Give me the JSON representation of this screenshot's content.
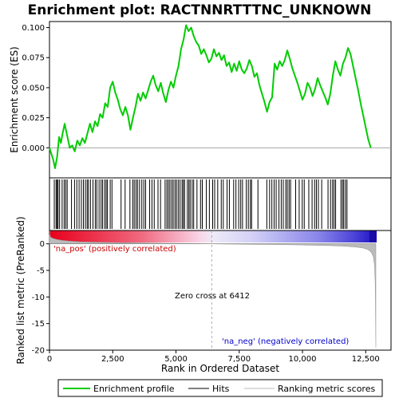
{
  "chart_data": {
    "type": "line",
    "title": "Enrichment plot: RACTNNRTTTNC_UNKNOWN",
    "legend": {
      "placement": "bottom",
      "entries": [
        {
          "label": "Enrichment profile",
          "color": "#00cc00"
        },
        {
          "label": "Hits",
          "color": "#000000"
        },
        {
          "label": "Ranking metric scores",
          "color": "#bbbbbb"
        }
      ]
    },
    "x_axis": {
      "label": "Rank in Ordered Dataset",
      "range": [
        0,
        13500
      ],
      "ticks": [
        0,
        2500,
        5000,
        7500,
        10000,
        12500
      ],
      "tick_labels": [
        "0",
        "2,500",
        "5,000",
        "7,500",
        "10,000",
        "12,500"
      ]
    },
    "es_axis": {
      "label": "Enrichment score (ES)",
      "range": [
        -0.025,
        0.105
      ],
      "ticks": [
        0.0,
        0.025,
        0.05,
        0.075,
        0.1
      ],
      "tick_labels": [
        "0.000",
        "0.025",
        "0.050",
        "0.075",
        "0.100"
      ]
    },
    "rank_axis": {
      "label": "Ranked list metric (PreRanked)",
      "range": [
        -20,
        2.5
      ],
      "ticks": [
        -20,
        -15,
        -10,
        -5,
        0
      ],
      "tick_labels": [
        "-20",
        "-15",
        "-10",
        "-5",
        "0"
      ]
    },
    "annotations": {
      "pos_label": "'na_pos' (positively correlated)",
      "neg_label": "'na_neg' (negatively correlated)",
      "zero_cross": "Zero cross at 6412",
      "zero_cross_x": 6412
    },
    "total_genes": 12900,
    "enrichment_profile": [
      [
        0,
        0.0
      ],
      [
        150,
        -0.01
      ],
      [
        220,
        -0.017
      ],
      [
        300,
        -0.008
      ],
      [
        380,
        0.009
      ],
      [
        450,
        0.004
      ],
      [
        520,
        0.012
      ],
      [
        600,
        0.02
      ],
      [
        700,
        0.01
      ],
      [
        800,
        0.0
      ],
      [
        900,
        0.002
      ],
      [
        1000,
        -0.003
      ],
      [
        1100,
        0.006
      ],
      [
        1200,
        0.002
      ],
      [
        1300,
        0.008
      ],
      [
        1400,
        0.004
      ],
      [
        1500,
        0.012
      ],
      [
        1600,
        0.02
      ],
      [
        1700,
        0.013
      ],
      [
        1800,
        0.022
      ],
      [
        1900,
        0.018
      ],
      [
        2000,
        0.028
      ],
      [
        2100,
        0.025
      ],
      [
        2200,
        0.037
      ],
      [
        2300,
        0.034
      ],
      [
        2400,
        0.05
      ],
      [
        2500,
        0.055
      ],
      [
        2600,
        0.046
      ],
      [
        2700,
        0.04
      ],
      [
        2800,
        0.032
      ],
      [
        2900,
        0.027
      ],
      [
        3000,
        0.034
      ],
      [
        3100,
        0.027
      ],
      [
        3200,
        0.015
      ],
      [
        3300,
        0.025
      ],
      [
        3400,
        0.034
      ],
      [
        3500,
        0.045
      ],
      [
        3600,
        0.039
      ],
      [
        3700,
        0.046
      ],
      [
        3800,
        0.041
      ],
      [
        3900,
        0.048
      ],
      [
        4000,
        0.055
      ],
      [
        4100,
        0.06
      ],
      [
        4200,
        0.052
      ],
      [
        4300,
        0.047
      ],
      [
        4400,
        0.054
      ],
      [
        4500,
        0.045
      ],
      [
        4600,
        0.038
      ],
      [
        4700,
        0.048
      ],
      [
        4800,
        0.055
      ],
      [
        4900,
        0.05
      ],
      [
        5000,
        0.06
      ],
      [
        5100,
        0.068
      ],
      [
        5200,
        0.082
      ],
      [
        5300,
        0.09
      ],
      [
        5400,
        0.102
      ],
      [
        5500,
        0.097
      ],
      [
        5600,
        0.1
      ],
      [
        5700,
        0.093
      ],
      [
        5800,
        0.088
      ],
      [
        5900,
        0.085
      ],
      [
        6000,
        0.078
      ],
      [
        6100,
        0.082
      ],
      [
        6200,
        0.077
      ],
      [
        6300,
        0.071
      ],
      [
        6400,
        0.074
      ],
      [
        6500,
        0.082
      ],
      [
        6600,
        0.076
      ],
      [
        6700,
        0.079
      ],
      [
        6800,
        0.073
      ],
      [
        6900,
        0.077
      ],
      [
        7000,
        0.068
      ],
      [
        7100,
        0.071
      ],
      [
        7200,
        0.063
      ],
      [
        7300,
        0.07
      ],
      [
        7400,
        0.064
      ],
      [
        7500,
        0.072
      ],
      [
        7600,
        0.065
      ],
      [
        7700,
        0.062
      ],
      [
        7800,
        0.066
      ],
      [
        7900,
        0.073
      ],
      [
        8000,
        0.068
      ],
      [
        8100,
        0.059
      ],
      [
        8200,
        0.062
      ],
      [
        8300,
        0.052
      ],
      [
        8400,
        0.045
      ],
      [
        8500,
        0.038
      ],
      [
        8600,
        0.03
      ],
      [
        8700,
        0.038
      ],
      [
        8800,
        0.042
      ],
      [
        8900,
        0.07
      ],
      [
        9000,
        0.065
      ],
      [
        9100,
        0.072
      ],
      [
        9200,
        0.068
      ],
      [
        9300,
        0.073
      ],
      [
        9400,
        0.081
      ],
      [
        9500,
        0.074
      ],
      [
        9600,
        0.066
      ],
      [
        9700,
        0.06
      ],
      [
        9800,
        0.054
      ],
      [
        9900,
        0.047
      ],
      [
        10000,
        0.04
      ],
      [
        10100,
        0.045
      ],
      [
        10200,
        0.054
      ],
      [
        10300,
        0.05
      ],
      [
        10400,
        0.043
      ],
      [
        10500,
        0.049
      ],
      [
        10600,
        0.058
      ],
      [
        10700,
        0.052
      ],
      [
        10800,
        0.047
      ],
      [
        10900,
        0.042
      ],
      [
        11000,
        0.036
      ],
      [
        11100,
        0.045
      ],
      [
        11200,
        0.06
      ],
      [
        11300,
        0.072
      ],
      [
        11400,
        0.065
      ],
      [
        11500,
        0.06
      ],
      [
        11600,
        0.07
      ],
      [
        11700,
        0.075
      ],
      [
        11800,
        0.083
      ],
      [
        11900,
        0.078
      ],
      [
        12000,
        0.068
      ],
      [
        12100,
        0.058
      ],
      [
        12200,
        0.048
      ],
      [
        12300,
        0.037
      ],
      [
        12400,
        0.027
      ],
      [
        12500,
        0.017
      ],
      [
        12600,
        0.007
      ],
      [
        12700,
        0.0
      ]
    ],
    "hits": [
      190,
      260,
      300,
      340,
      400,
      500,
      580,
      640,
      700,
      870,
      990,
      1080,
      1170,
      1260,
      1340,
      1420,
      1490,
      1540,
      1620,
      1720,
      1810,
      1870,
      1960,
      2040,
      2100,
      2180,
      2240,
      2290,
      2400,
      2470,
      2830,
      2990,
      3180,
      3290,
      3350,
      3420,
      3480,
      3560,
      3650,
      3730,
      3800,
      3960,
      4050,
      4140,
      4290,
      4390,
      4570,
      4640,
      4700,
      4760,
      4830,
      4890,
      4960,
      5020,
      5090,
      5160,
      5240,
      5290,
      5340,
      5450,
      5510,
      5560,
      5640,
      5700,
      5830,
      5970,
      6040,
      6200,
      6320,
      6450,
      6530,
      6650,
      6790,
      6870,
      7020,
      7110,
      7280,
      7370,
      7480,
      7560,
      7630,
      7780,
      7860,
      7940,
      7990,
      8240,
      8590,
      8700,
      8790,
      8880,
      8960,
      9070,
      9160,
      9240,
      9340,
      9400,
      9470,
      9530,
      9730,
      9870,
      9990,
      10070,
      10250,
      10380,
      10480,
      10550,
      10630,
      10760,
      11010,
      11110,
      11190,
      11250,
      11310,
      11520,
      11580,
      11630,
      11700,
      11760
    ],
    "metric_profile": [
      [
        0,
        1.6
      ],
      [
        60,
        1.2
      ],
      [
        150,
        1.0
      ],
      [
        300,
        0.8
      ],
      [
        500,
        0.65
      ],
      [
        800,
        0.5
      ],
      [
        1200,
        0.38
      ],
      [
        1800,
        0.3
      ],
      [
        2500,
        0.24
      ],
      [
        3500,
        0.17
      ],
      [
        4500,
        0.1
      ],
      [
        5500,
        0.05
      ],
      [
        6412,
        0.0
      ],
      [
        7000,
        -0.04
      ],
      [
        8000,
        -0.09
      ],
      [
        9000,
        -0.14
      ],
      [
        10000,
        -0.22
      ],
      [
        11000,
        -0.32
      ],
      [
        11700,
        -0.45
      ],
      [
        12100,
        -0.6
      ],
      [
        12400,
        -0.8
      ],
      [
        12600,
        -1.1
      ],
      [
        12720,
        -1.6
      ],
      [
        12800,
        -2.4
      ],
      [
        12850,
        -4
      ],
      [
        12880,
        -8
      ],
      [
        12900,
        -19.5
      ]
    ]
  }
}
